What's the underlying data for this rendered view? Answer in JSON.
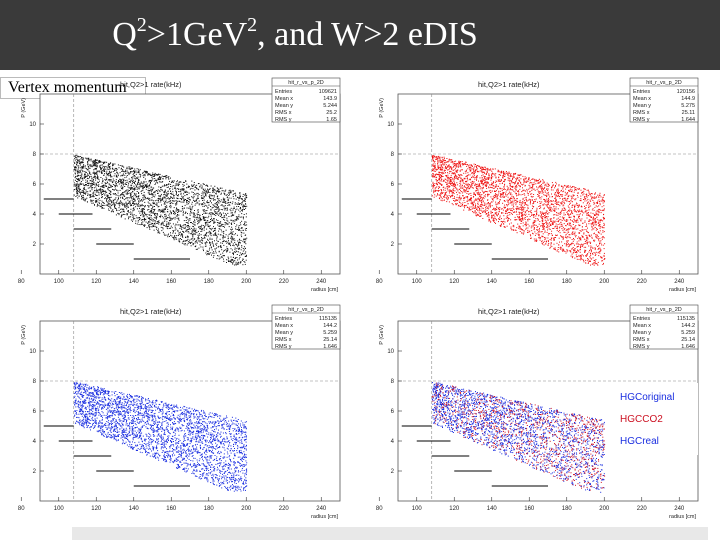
{
  "slide": {
    "title_q": "Q",
    "title_q_exp": "2",
    "title_mid": ">1GeV",
    "title_v_exp": "2",
    "title_rest": ", and W>2 eDIS",
    "side_label": "Vertex momentum"
  },
  "plots": [
    {
      "title": "hit,Q2>1 rate(kHz)",
      "stats": {
        "name": "hit_r_vs_p_2D",
        "rows": [
          [
            "Entries",
            "109621"
          ],
          [
            "Mean x",
            "143.9"
          ],
          [
            "Mean y",
            "5.244"
          ],
          [
            "RMS x",
            "25.2"
          ],
          [
            "RMS y",
            "1.65"
          ]
        ]
      },
      "xlabel": "radius [cm]",
      "ylabel": "P (GeV)",
      "xticks": [
        "80",
        "100",
        "120",
        "140",
        "160",
        "180",
        "200",
        "220",
        "240"
      ],
      "yticks": [
        "2",
        "4",
        "6",
        "8",
        "10"
      ],
      "color": "#111111"
    },
    {
      "title": "hit,Q2>1 rate(kHz)",
      "stats": {
        "name": "hit_r_vs_p_2D",
        "rows": [
          [
            "Entries",
            "120156"
          ],
          [
            "Mean x",
            "144.9"
          ],
          [
            "Mean y",
            "5.275"
          ],
          [
            "RMS x",
            "25.11"
          ],
          [
            "RMS y",
            "1.644"
          ]
        ]
      },
      "xlabel": "radius [cm]",
      "ylabel": "P (GeV)",
      "xticks": [
        "80",
        "100",
        "120",
        "140",
        "160",
        "180",
        "200",
        "220",
        "240"
      ],
      "yticks": [
        "2",
        "4",
        "6",
        "8",
        "10"
      ],
      "color": "#ee1111"
    },
    {
      "title": "hit,Q2>1 rate(kHz)",
      "stats": {
        "name": "hit_r_vs_p_2D",
        "rows": [
          [
            "Entries",
            "115135"
          ],
          [
            "Mean x",
            "144.2"
          ],
          [
            "Mean y",
            "5.259"
          ],
          [
            "RMS x",
            "25.14"
          ],
          [
            "RMS y",
            "1.646"
          ]
        ]
      },
      "xlabel": "radius [cm]",
      "ylabel": "P (GeV)",
      "xticks": [
        "80",
        "100",
        "120",
        "140",
        "160",
        "180",
        "200",
        "220",
        "240"
      ],
      "yticks": [
        "2",
        "4",
        "6",
        "8",
        "10"
      ],
      "color": "#1a2ee0"
    },
    {
      "title": "hit,Q2>1 rate(kHz)",
      "stats": {
        "name": "hit_r_vs_p_2D",
        "rows": [
          [
            "Entries",
            "115135"
          ],
          [
            "Mean x",
            "144.2"
          ],
          [
            "Mean y",
            "5.259"
          ],
          [
            "RMS x",
            "25.14"
          ],
          [
            "RMS y",
            "1.646"
          ]
        ]
      },
      "xlabel": "radius [cm]",
      "ylabel": "P (GeV)",
      "xticks": [
        "80",
        "100",
        "120",
        "140",
        "160",
        "180",
        "200",
        "220",
        "240"
      ],
      "yticks": [
        "2",
        "4",
        "6",
        "8",
        "10"
      ],
      "color": "#1a2ee0",
      "overlay_color": "#cc1122",
      "legend": [
        {
          "label": "HGCoriginal",
          "color": "#1a2ee0"
        },
        {
          "label": "HGCCO2",
          "color": "#cc1122"
        },
        {
          "label": "HGCreal",
          "color": "#1a2ee0"
        }
      ]
    }
  ]
}
